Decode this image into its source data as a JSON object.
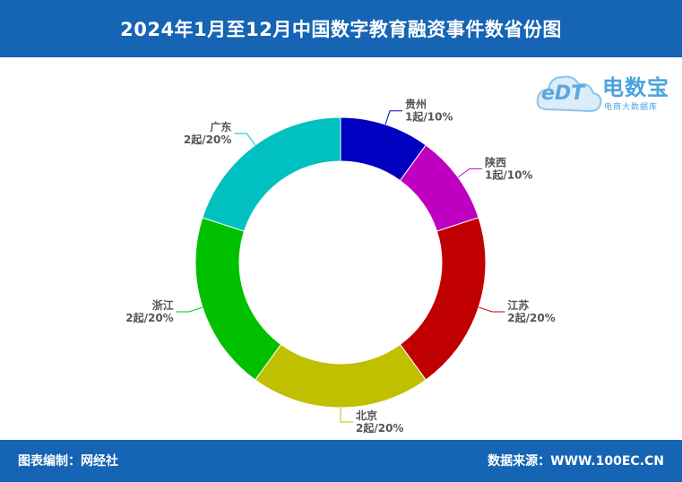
{
  "header": {
    "title": "2024年1月至12月中国数字教育融资事件数省份图"
  },
  "footer": {
    "left": "图表编制：网经社",
    "right": "数据来源：WWW.100EC.CN"
  },
  "logo": {
    "name": "电数宝",
    "tagline": "电商大数据库",
    "badge": "eDT"
  },
  "chart_data": {
    "type": "pie",
    "donut": true,
    "slices": [
      {
        "name": "贵州",
        "value": 1,
        "label": "1起/10%",
        "color": "#0000c0"
      },
      {
        "name": "陕西",
        "value": 1,
        "label": "1起/10%",
        "color": "#c000c0"
      },
      {
        "name": "江苏",
        "value": 2,
        "label": "2起/20%",
        "color": "#c00000"
      },
      {
        "name": "北京",
        "value": 2,
        "label": "2起/20%",
        "color": "#c0c000"
      },
      {
        "name": "浙江",
        "value": 2,
        "label": "2起/20%",
        "color": "#00c000"
      },
      {
        "name": "广东",
        "value": 2,
        "label": "2起/20%",
        "color": "#00c0c0"
      }
    ]
  }
}
